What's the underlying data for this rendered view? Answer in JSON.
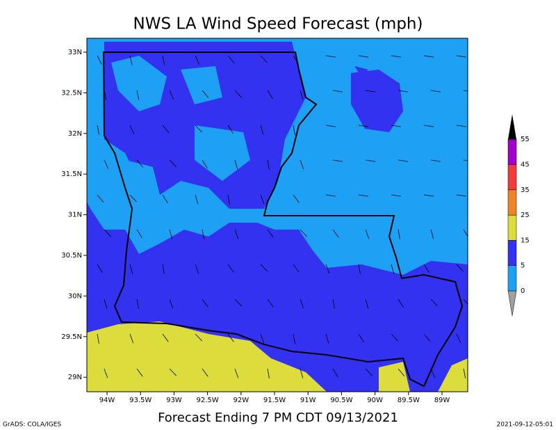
{
  "title": "NWS LA Wind Speed Forecast (mph)",
  "subtitle": "Forecast Ending 7 PM CDT 09/13/2021",
  "credit": "GrADS: COLA/IGES",
  "timestamp": "2021-09-12-05:01",
  "lat_labels": [
    "33N",
    "32.5N",
    "32N",
    "31.5N",
    "31N",
    "30.5N",
    "30N",
    "29.5N",
    "29N"
  ],
  "lon_labels": [
    "94W",
    "93.5W",
    "93W",
    "92.5W",
    "92W",
    "91.5W",
    "91W",
    "90.5W",
    "90W",
    "89.5W",
    "89W"
  ],
  "colorbar": {
    "levels": [
      0,
      5,
      15,
      25,
      35,
      45,
      55
    ],
    "colors": [
      "#a0a0a0",
      "#1ea0f5",
      "#3232f0",
      "#dcdc3c",
      "#f08228",
      "#f03c3c",
      "#a000c8",
      "#000000"
    ]
  }
}
